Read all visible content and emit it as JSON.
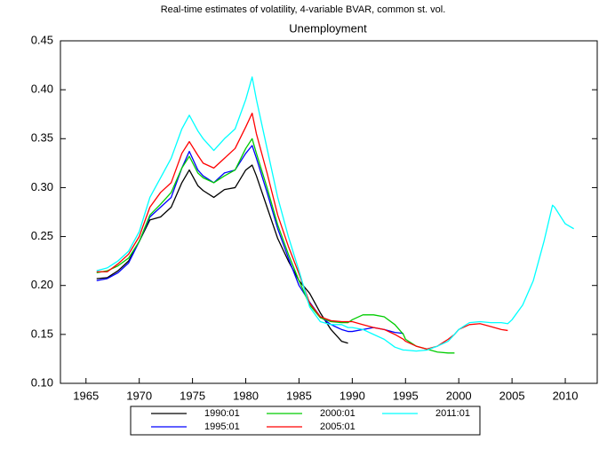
{
  "chart_data": {
    "type": "line",
    "title": "Real-time estimates of volatility, 4-variable BVAR, common st. vol.",
    "subtitle": "Unemployment",
    "x": [
      1966,
      1967,
      1968,
      1969,
      1970,
      1971,
      1972,
      1973,
      1974,
      1974.7,
      1975.5,
      1976,
      1977,
      1978,
      1979,
      1980,
      1980.6,
      1981,
      1982,
      1983,
      1984,
      1985,
      1986,
      1987,
      1988,
      1989,
      1989.6,
      1990,
      1991,
      1992,
      1993,
      1994,
      1994.8,
      1995,
      1996,
      1997,
      1998,
      1999,
      1999.6,
      2000,
      2001,
      2002,
      2003,
      2004,
      2004.6,
      2005,
      2006,
      2007,
      2008,
      2008.8,
      2009,
      2010,
      2010.8
    ],
    "series": [
      {
        "name": "1990:01",
        "color": "#000000",
        "values": [
          0.207,
          0.208,
          0.215,
          0.225,
          0.245,
          0.267,
          0.27,
          0.28,
          0.305,
          0.318,
          0.302,
          0.297,
          0.29,
          0.298,
          0.3,
          0.318,
          0.323,
          0.312,
          0.28,
          0.248,
          0.225,
          0.205,
          0.192,
          0.172,
          0.155,
          0.143,
          0.141,
          null,
          null,
          null,
          null,
          null,
          null,
          null,
          null,
          null,
          null,
          null,
          null,
          null,
          null,
          null,
          null,
          null,
          null,
          null,
          null,
          null,
          null,
          null,
          null,
          null,
          null
        ]
      },
      {
        "name": "1995:01",
        "color": "#0000ff",
        "values": [
          0.205,
          0.207,
          0.213,
          0.223,
          0.245,
          0.27,
          0.28,
          0.29,
          0.32,
          0.337,
          0.318,
          0.312,
          0.305,
          0.315,
          0.318,
          0.335,
          0.343,
          0.33,
          0.295,
          0.258,
          0.228,
          0.2,
          0.183,
          0.168,
          0.16,
          0.155,
          0.153,
          0.153,
          0.155,
          0.157,
          0.155,
          0.152,
          0.151,
          null,
          null,
          null,
          null,
          null,
          null,
          null,
          null,
          null,
          null,
          null,
          null,
          null,
          null,
          null,
          null,
          null,
          null,
          null,
          null
        ]
      },
      {
        "name": "2000:01",
        "color": "#00cc00",
        "values": [
          0.213,
          0.215,
          0.22,
          0.228,
          0.245,
          0.272,
          0.283,
          0.295,
          0.32,
          0.332,
          0.315,
          0.31,
          0.305,
          0.312,
          0.318,
          0.34,
          0.35,
          0.335,
          0.3,
          0.262,
          0.232,
          0.205,
          0.18,
          0.167,
          0.163,
          0.162,
          0.162,
          0.165,
          0.17,
          0.17,
          0.168,
          0.16,
          0.15,
          0.145,
          0.138,
          0.135,
          0.132,
          0.131,
          0.131,
          null,
          null,
          null,
          null,
          null,
          null,
          null,
          null,
          null,
          null,
          null,
          null,
          null,
          null
        ]
      },
      {
        "name": "2005:01",
        "color": "#ff0000",
        "values": [
          0.214,
          0.214,
          0.222,
          0.232,
          0.25,
          0.28,
          0.295,
          0.305,
          0.335,
          0.347,
          0.333,
          0.325,
          0.32,
          0.33,
          0.34,
          0.362,
          0.376,
          0.355,
          0.315,
          0.272,
          0.24,
          0.212,
          0.182,
          0.168,
          0.164,
          0.163,
          0.163,
          0.163,
          0.16,
          0.157,
          0.155,
          0.15,
          0.145,
          0.143,
          0.138,
          0.135,
          0.138,
          0.145,
          0.15,
          0.155,
          0.16,
          0.161,
          0.158,
          0.155,
          0.154,
          null,
          null,
          null,
          null,
          null,
          null,
          null,
          null
        ]
      },
      {
        "name": "2011:01",
        "color": "#00ffff",
        "values": [
          0.215,
          0.218,
          0.225,
          0.235,
          0.255,
          0.29,
          0.31,
          0.33,
          0.36,
          0.374,
          0.358,
          0.35,
          0.338,
          0.35,
          0.36,
          0.39,
          0.413,
          0.39,
          0.34,
          0.29,
          0.25,
          0.215,
          0.178,
          0.163,
          0.16,
          0.16,
          0.157,
          0.157,
          0.155,
          0.15,
          0.145,
          0.137,
          0.134,
          0.134,
          0.133,
          0.134,
          0.138,
          0.143,
          0.15,
          0.155,
          0.162,
          0.163,
          0.162,
          0.162,
          0.161,
          0.165,
          0.18,
          0.205,
          0.245,
          0.282,
          0.28,
          0.263,
          0.258
        ]
      }
    ],
    "xlim": [
      1962.6,
      2013
    ],
    "xticks": [
      1965,
      1970,
      1975,
      1980,
      1985,
      1990,
      1995,
      2000,
      2005,
      2010
    ],
    "ylim": [
      0.1,
      0.45
    ],
    "yticks": [
      {
        "value": 0.1,
        "label": "0.10"
      },
      0.15,
      {
        "value": 0.2,
        "label": "0.20"
      },
      0.25,
      {
        "value": 0.3,
        "label": "0.30"
      },
      0.35,
      {
        "value": 0.4,
        "label": "0.40"
      },
      0.45
    ]
  }
}
